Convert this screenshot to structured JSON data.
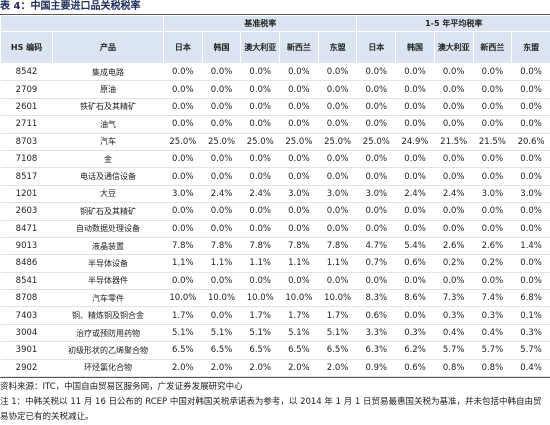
{
  "title": "表 4：中国主要进口品关税税率",
  "table": {
    "group_headers": [
      "基准税率",
      "1-5 年平均税率"
    ],
    "columns": [
      "HS 编码",
      "产品",
      "日本",
      "韩国",
      "澳大利亚",
      "新西兰",
      "东盟",
      "日本",
      "韩国",
      "澳大利亚",
      "新西兰",
      "东盟"
    ],
    "rows": [
      [
        "8542",
        "集成电路",
        "0.0%",
        "0.0%",
        "0.0%",
        "0.0%",
        "0.0%",
        "0.0%",
        "0.0%",
        "0.0%",
        "0.0%",
        "0.0%"
      ],
      [
        "2709",
        "原油",
        "0.0%",
        "0.0%",
        "0.0%",
        "0.0%",
        "0.0%",
        "0.0%",
        "0.0%",
        "0.0%",
        "0.0%",
        "0.0%"
      ],
      [
        "2601",
        "铁矿石及其精矿",
        "0.0%",
        "0.0%",
        "0.0%",
        "0.0%",
        "0.0%",
        "0.0%",
        "0.0%",
        "0.0%",
        "0.0%",
        "0.0%"
      ],
      [
        "2711",
        "油气",
        "0.0%",
        "0.0%",
        "0.0%",
        "0.0%",
        "0.0%",
        "0.0%",
        "0.0%",
        "0.0%",
        "0.0%",
        "0.0%"
      ],
      [
        "8703",
        "汽车",
        "25.0%",
        "25.0%",
        "25.0%",
        "25.0%",
        "25.0%",
        "25.0%",
        "24.9%",
        "21.5%",
        "21.5%",
        "20.6%"
      ],
      [
        "7108",
        "金",
        "0.0%",
        "0.0%",
        "0.0%",
        "0.0%",
        "0.0%",
        "0.0%",
        "0.0%",
        "0.0%",
        "0.0%",
        "0.0%"
      ],
      [
        "8517",
        "电话及通信设备",
        "0.0%",
        "0.0%",
        "0.0%",
        "0.0%",
        "0.0%",
        "0.0%",
        "0.0%",
        "0.0%",
        "0.0%",
        "0.0%"
      ],
      [
        "1201",
        "大豆",
        "3.0%",
        "2.4%",
        "2.4%",
        "3.0%",
        "3.0%",
        "3.0%",
        "2.4%",
        "2.4%",
        "3.0%",
        "3.0%"
      ],
      [
        "2603",
        "铜矿石及其精矿",
        "0.0%",
        "0.0%",
        "0.0%",
        "0.0%",
        "0.0%",
        "0.0%",
        "0.0%",
        "0.0%",
        "0.0%",
        "0.0%"
      ],
      [
        "8471",
        "自动数据处理设备",
        "0.0%",
        "0.0%",
        "0.0%",
        "0.0%",
        "0.0%",
        "0.0%",
        "0.0%",
        "0.0%",
        "0.0%",
        "0.0%"
      ],
      [
        "9013",
        "液晶装置",
        "7.8%",
        "7.8%",
        "7.8%",
        "7.8%",
        "7.8%",
        "4.7%",
        "5.4%",
        "2.6%",
        "2.6%",
        "1.4%"
      ],
      [
        "8486",
        "半导体设备",
        "1.1%",
        "1.1%",
        "1.1%",
        "1.1%",
        "1.1%",
        "0.7%",
        "0.6%",
        "0.2%",
        "0.2%",
        "0.0%"
      ],
      [
        "8541",
        "半导体器件",
        "0.0%",
        "0.0%",
        "0.0%",
        "0.0%",
        "0.0%",
        "0.0%",
        "0.0%",
        "0.0%",
        "0.0%",
        "0.0%"
      ],
      [
        "8708",
        "汽车零件",
        "10.0%",
        "10.0%",
        "10.0%",
        "10.0%",
        "10.0%",
        "8.3%",
        "8.6%",
        "7.3%",
        "7.4%",
        "6.8%"
      ],
      [
        "7403",
        "铜、精炼铜及铜合金",
        "1.7%",
        "0.0%",
        "1.7%",
        "1.7%",
        "1.7%",
        "0.6%",
        "0.0%",
        "0.3%",
        "0.3%",
        "0.1%"
      ],
      [
        "3004",
        "治疗或预防用药物",
        "5.1%",
        "5.1%",
        "5.1%",
        "5.1%",
        "5.1%",
        "3.3%",
        "0.3%",
        "0.4%",
        "0.4%",
        "0.3%"
      ],
      [
        "3901",
        "初级形状的乙烯聚合物",
        "6.5%",
        "6.5%",
        "6.5%",
        "6.5%",
        "6.5%",
        "6.3%",
        "6.2%",
        "5.7%",
        "5.7%",
        "5.7%"
      ],
      [
        "2902",
        "环烃氯化合物",
        "2.0%",
        "2.0%",
        "2.0%",
        "2.0%",
        "2.0%",
        "0.9%",
        "0.6%",
        "0.8%",
        "0.8%",
        "0.4%"
      ]
    ]
  },
  "source": "资料来源：ITC，中国自由贸易区服务网，广发证券发展研究中心",
  "note": "注 1：中韩关税以 11 月 16 日公布的 RCEP 中国对韩国关税承诺表为参考，以 2014 年 1 月 1 日贸易最惠国关税为基准，并未包括中韩自由贸易协定已有的关税减让。"
}
